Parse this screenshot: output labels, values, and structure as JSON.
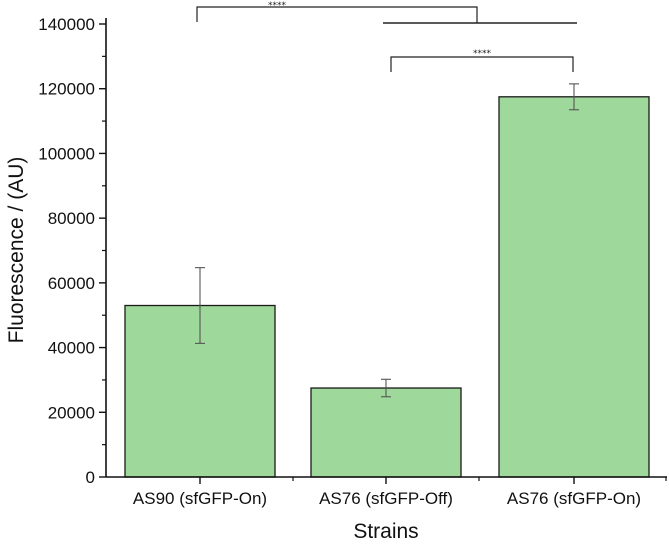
{
  "chart_data": {
    "type": "bar",
    "title": "",
    "xlabel": "Strains",
    "ylabel": "Fluorescence / (AU)",
    "categories": [
      "AS90 (sfGFP-On)",
      "AS76 (sfGFP-Off)",
      "AS76 (sfGFP-On)"
    ],
    "values": [
      53000,
      27500,
      117500
    ],
    "errors": [
      11700,
      2700,
      4000
    ],
    "ylim": [
      0,
      140000
    ],
    "yticks": [
      0,
      20000,
      40000,
      60000,
      80000,
      100000,
      120000,
      140000
    ],
    "ytick_labels": [
      "0",
      "20000",
      "40000",
      "60000",
      "80000",
      "100000",
      "120000",
      "140000"
    ],
    "minor_yticks": [
      10000,
      30000,
      50000,
      70000,
      90000,
      110000,
      130000
    ],
    "grid": false,
    "legend": null,
    "bar_color": "#9fd89b",
    "bar_edge_color": "#1a1a1a",
    "annotations": [
      {
        "type": "significance",
        "label": "****",
        "from": "AS90 (sfGFP-On)",
        "to": "AS76 (sfGFP-Off) / AS76 (sfGFP-On) pair"
      },
      {
        "type": "significance",
        "label": "****",
        "from": "AS76 (sfGFP-Off)",
        "to": "AS76 (sfGFP-On)"
      }
    ]
  }
}
